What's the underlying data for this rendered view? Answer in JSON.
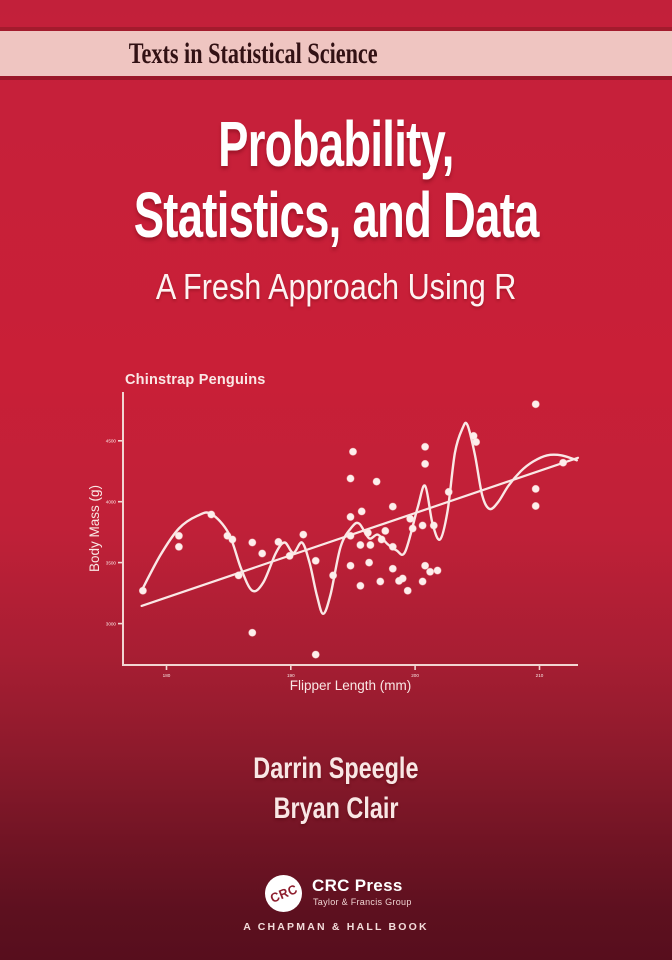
{
  "series_band": {
    "label": "Texts in Statistical Science"
  },
  "title": {
    "line1": "Probability,",
    "line2": "Statistics, and Data",
    "subtitle": "A Fresh Approach Using R"
  },
  "authors": [
    "Darrin Speegle",
    "Bryan Clair"
  ],
  "publisher": {
    "logo_text": "CRC",
    "name": "CRC Press",
    "group": "Taylor & Francis Group",
    "imprint": "A CHAPMAN & HALL BOOK"
  },
  "colors": {
    "background_top": "#c6203a",
    "background_bottom": "#570e1d",
    "band_pink": "#efc5c1",
    "band_border": "#a31b2d",
    "band_text": "#321114",
    "title_text": "#ffffff",
    "chart_ink": "#fae8e6",
    "chart_axis": "#f2d5d2",
    "crc_red": "#8e1f2e"
  },
  "chart_data": {
    "type": "scatter",
    "title": "Chinstrap Penguins",
    "xlabel": "Flipper Length (mm)",
    "ylabel": "Body Mass (g)",
    "xlim": [
      176.5,
      213.1
    ],
    "ylim": [
      2660,
      4900
    ],
    "x_ticks": [
      180,
      190,
      200,
      210
    ],
    "y_ticks": [
      3000,
      3500,
      4000,
      4500
    ],
    "grid": false,
    "legend": "none",
    "points": [
      [
        178.1,
        3270
      ],
      [
        181,
        3720
      ],
      [
        181,
        3630
      ],
      [
        183.6,
        3895
      ],
      [
        184.9,
        3720
      ],
      [
        185.3,
        3690
      ],
      [
        185.8,
        3395
      ],
      [
        186.9,
        3665
      ],
      [
        186.9,
        2925
      ],
      [
        187.7,
        3575
      ],
      [
        189,
        3670
      ],
      [
        189.9,
        3555
      ],
      [
        191,
        3730
      ],
      [
        192,
        3515
      ],
      [
        192,
        2745
      ],
      [
        193.4,
        3395
      ],
      [
        194.8,
        4190
      ],
      [
        194.8,
        3875
      ],
      [
        194.8,
        3720
      ],
      [
        194.8,
        3475
      ],
      [
        195,
        4410
      ],
      [
        195.6,
        3645
      ],
      [
        195.6,
        3310
      ],
      [
        195.7,
        3920
      ],
      [
        196.2,
        3745
      ],
      [
        196.3,
        3500
      ],
      [
        196.4,
        3645
      ],
      [
        196.9,
        4165
      ],
      [
        197.2,
        3345
      ],
      [
        197.3,
        3690
      ],
      [
        197.6,
        3760
      ],
      [
        198.2,
        3960
      ],
      [
        198.2,
        3630
      ],
      [
        198.2,
        3450
      ],
      [
        198.7,
        3350
      ],
      [
        199,
        3370
      ],
      [
        199.4,
        3270
      ],
      [
        199.6,
        3860
      ],
      [
        199.8,
        3780
      ],
      [
        200.6,
        3805
      ],
      [
        200.6,
        3345
      ],
      [
        200.8,
        4450
      ],
      [
        200.8,
        4310
      ],
      [
        200.8,
        3475
      ],
      [
        201.2,
        3425
      ],
      [
        201.5,
        3805
      ],
      [
        201.8,
        3435
      ],
      [
        202.7,
        4080
      ],
      [
        204.7,
        4540
      ],
      [
        204.9,
        4490
      ],
      [
        209.7,
        4800
      ],
      [
        209.7,
        4105
      ],
      [
        209.7,
        3965
      ],
      [
        211.9,
        4320
      ]
    ],
    "regression_line": {
      "x": [
        178,
        213.1
      ],
      "y": [
        3145,
        4360
      ]
    },
    "smooth_curve": [
      [
        178,
        3270
      ],
      [
        179.5,
        3560
      ],
      [
        181,
        3780
      ],
      [
        182.5,
        3885
      ],
      [
        183.6,
        3900
      ],
      [
        185,
        3740
      ],
      [
        186,
        3450
      ],
      [
        186.9,
        3270
      ],
      [
        187.8,
        3340
      ],
      [
        188.8,
        3580
      ],
      [
        189.5,
        3665
      ],
      [
        190.2,
        3580
      ],
      [
        190.9,
        3665
      ],
      [
        191.5,
        3500
      ],
      [
        192.1,
        3230
      ],
      [
        192.6,
        3080
      ],
      [
        193.2,
        3240
      ],
      [
        194,
        3630
      ],
      [
        194.9,
        3790
      ],
      [
        195.5,
        3820
      ],
      [
        196.3,
        3700
      ],
      [
        197,
        3730
      ],
      [
        197.8,
        3650
      ],
      [
        198.5,
        3600
      ],
      [
        199.2,
        3590
      ],
      [
        200.2,
        3950
      ],
      [
        200.8,
        4130
      ],
      [
        201.4,
        3820
      ],
      [
        202,
        3690
      ],
      [
        202.6,
        3920
      ],
      [
        203.2,
        4400
      ],
      [
        203.8,
        4600
      ],
      [
        204.2,
        4630
      ],
      [
        204.8,
        4390
      ],
      [
        205.4,
        4050
      ],
      [
        206,
        3940
      ],
      [
        206.7,
        4000
      ],
      [
        207.5,
        4130
      ],
      [
        208.5,
        4250
      ],
      [
        209.5,
        4330
      ],
      [
        210.6,
        4380
      ],
      [
        211.8,
        4380
      ],
      [
        213,
        4340
      ]
    ]
  }
}
